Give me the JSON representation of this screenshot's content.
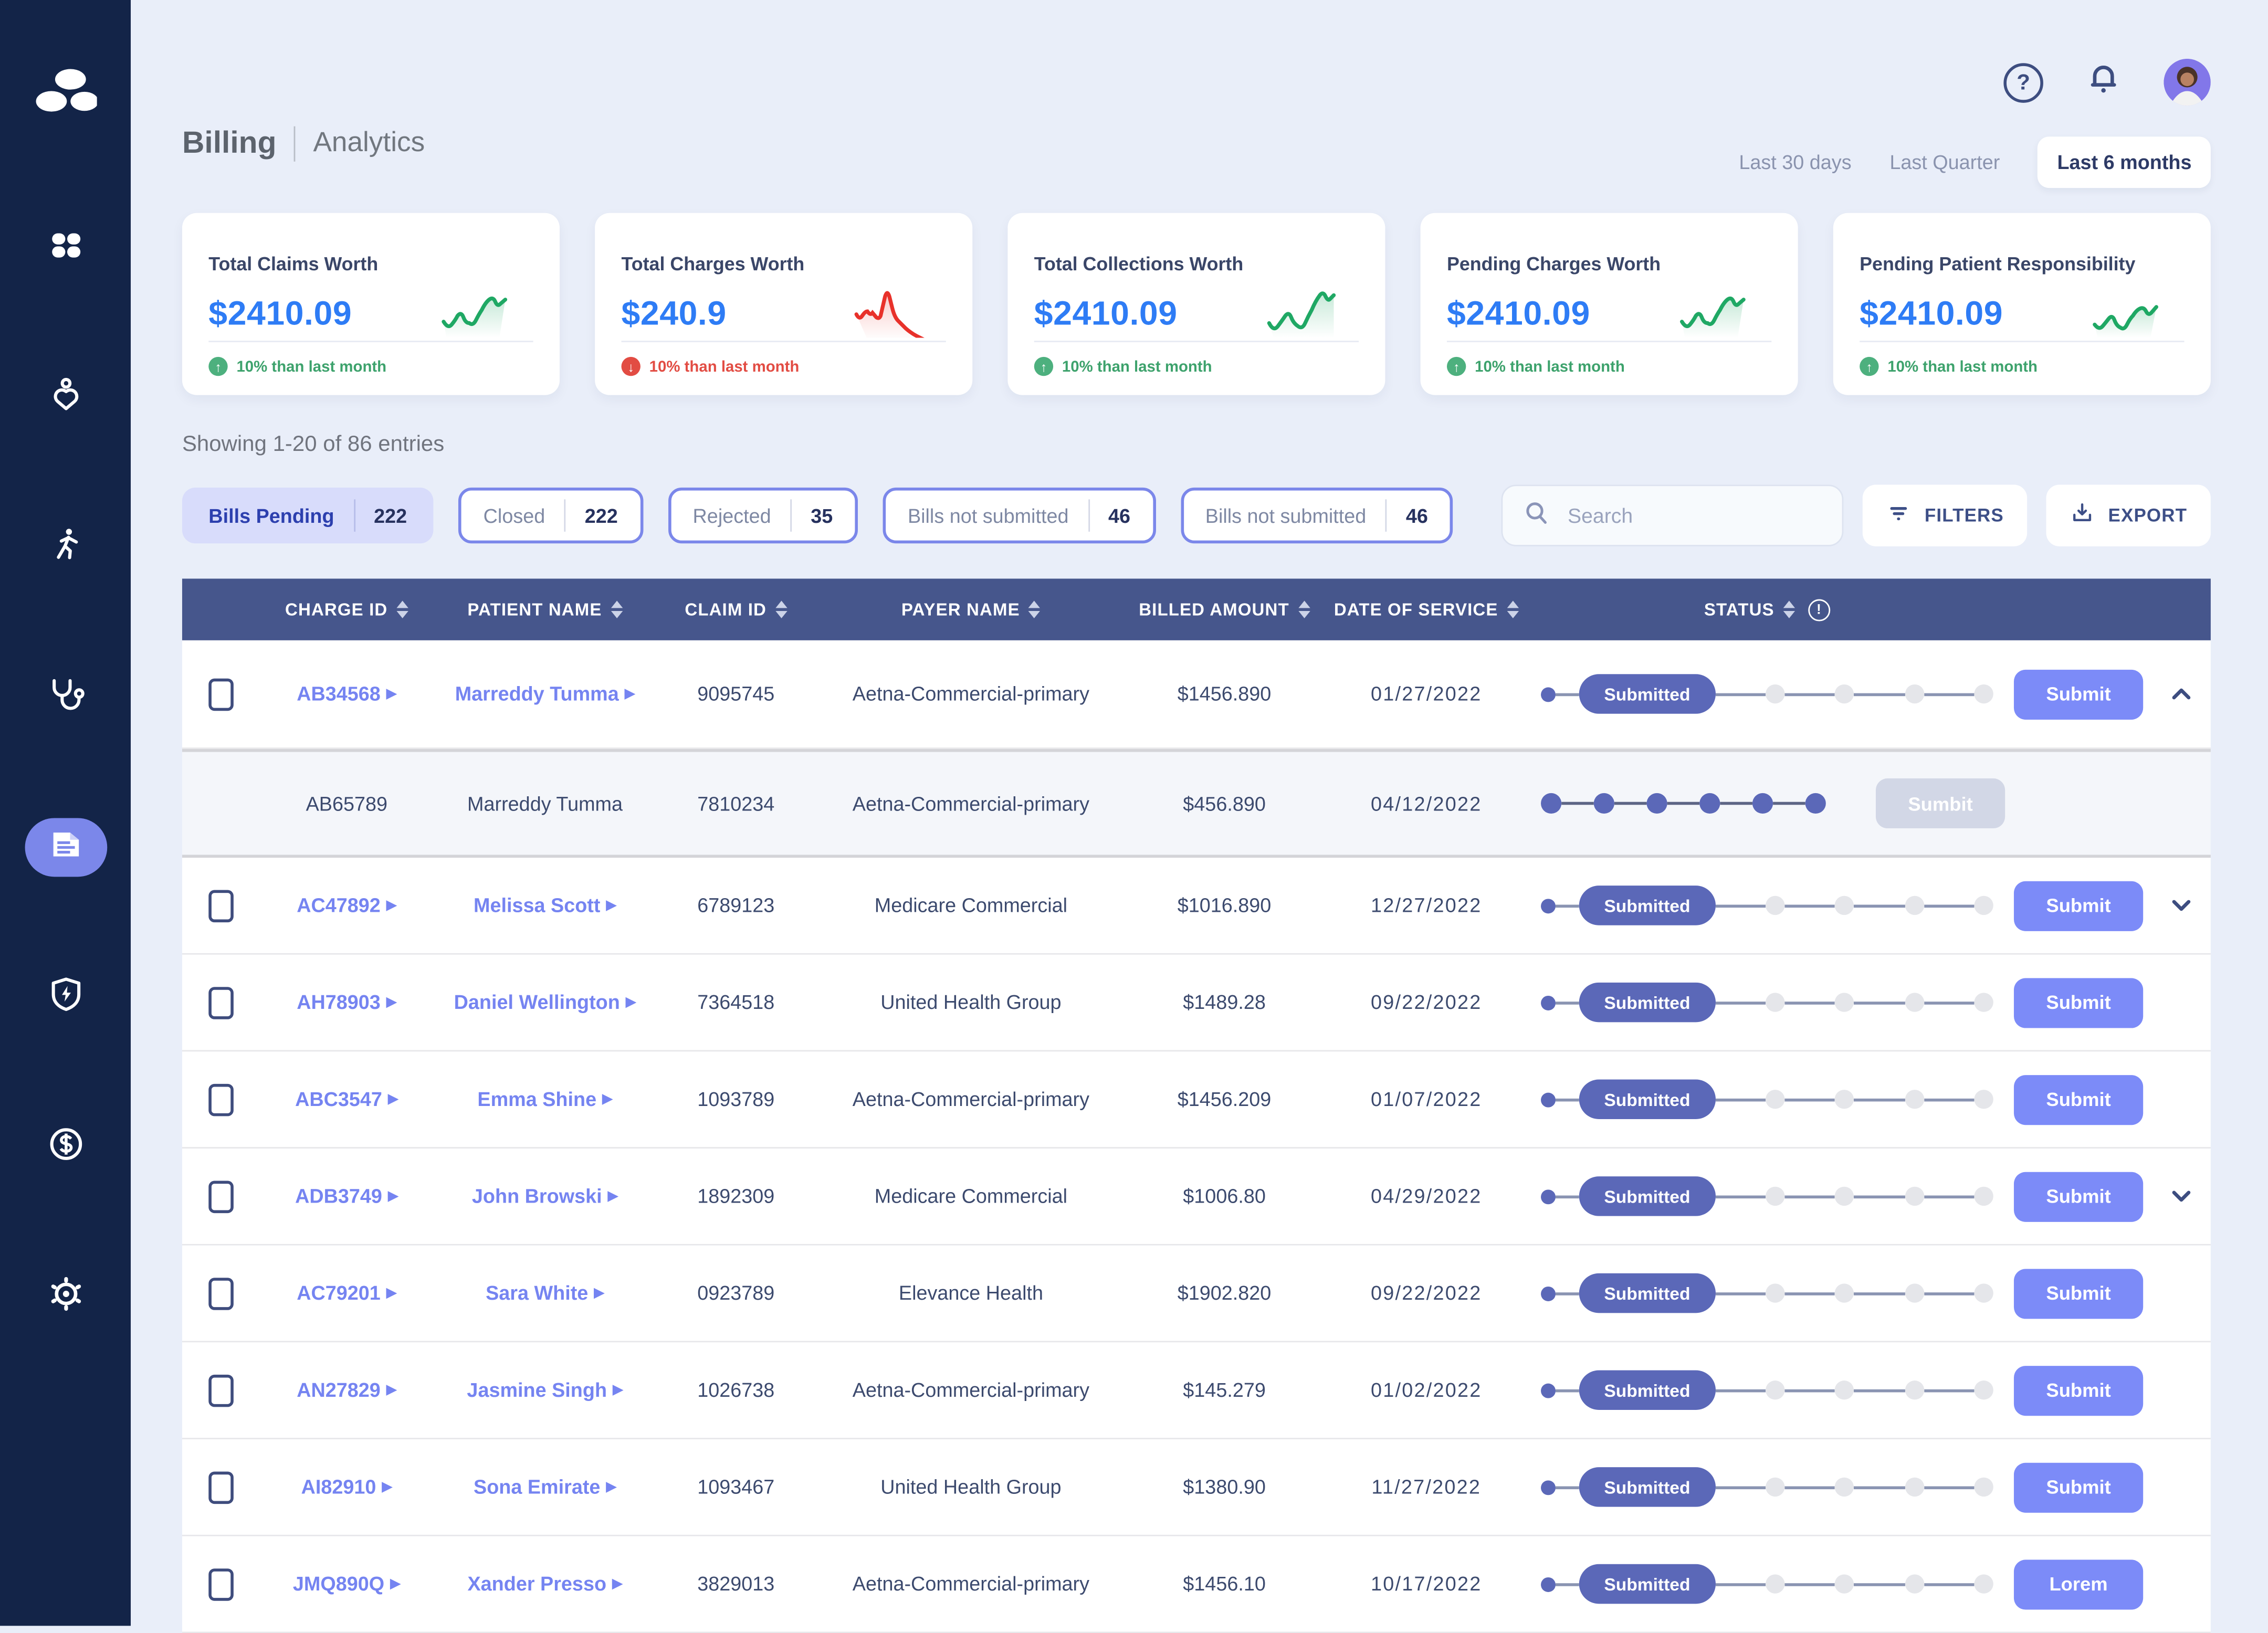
{
  "page": {
    "title": "Billing",
    "subtitle": "Analytics"
  },
  "topbar": {
    "help_glyph": "?",
    "icons": [
      "help-icon",
      "bell-icon",
      "user-avatar"
    ]
  },
  "time_filters": [
    {
      "label": "Last 30 days",
      "active": false
    },
    {
      "label": "Last Quarter",
      "active": false
    },
    {
      "label": "Last 6 months",
      "active": true
    }
  ],
  "cards": [
    {
      "title": "Total Claims Worth",
      "value": "$2410.09",
      "trend": "up",
      "footer": "10% than last month"
    },
    {
      "title": "Total Charges Worth",
      "value": "$240.9",
      "trend": "down",
      "footer": "10% than last month"
    },
    {
      "title": "Total Collections Worth",
      "value": "$2410.09",
      "trend": "up",
      "footer": "10% than last month"
    },
    {
      "title": "Pending Charges Worth",
      "value": "$2410.09",
      "trend": "up",
      "footer": "10% than last month"
    },
    {
      "title": "Pending Patient Responsibility",
      "value": "$2410.09",
      "trend": "up",
      "footer": "10% than last month"
    }
  ],
  "entries_summary": "Showing 1-20 of 86 entries",
  "filter_chips": [
    {
      "label": "Bills Pending",
      "count": "222",
      "active": true
    },
    {
      "label": "Closed",
      "count": "222",
      "active": false
    },
    {
      "label": "Rejected",
      "count": "35",
      "active": false
    },
    {
      "label": "Bills not submitted",
      "count": "46",
      "active": false
    },
    {
      "label": "Bills not submitted",
      "count": "46",
      "active": false
    }
  ],
  "search": {
    "placeholder": "Search"
  },
  "toolbar": {
    "filters_label": "FILTERS",
    "export_label": "EXPORT"
  },
  "sidebar": {
    "logo": "org-logo-cluster",
    "items": [
      {
        "icon": "apps-grid-icon",
        "active": false
      },
      {
        "icon": "patient-care-icon",
        "active": false
      },
      {
        "icon": "activity-walk-icon",
        "active": false
      },
      {
        "icon": "stethoscope-icon",
        "active": false
      },
      {
        "icon": "billing-document-icon",
        "active": true
      },
      {
        "icon": "shield-bolt-icon",
        "active": false
      },
      {
        "icon": "payments-dollar-icon",
        "active": false
      },
      {
        "icon": "settings-gear-icon",
        "active": false
      }
    ]
  },
  "table": {
    "columns": [
      "CHARGE ID",
      "PATIENT NAME",
      "CLAIM ID",
      "PAYER NAME",
      "BILLED AMOUNT",
      "DATE OF SERVICE",
      "STATUS"
    ],
    "rows": [
      {
        "charge_id": "AB34568",
        "patient_name": "Marreddy Tumma",
        "claim_id": "9095745",
        "payer_name": "Aetna-Commercial-primary",
        "billed_amount": "$1456.890",
        "date_of_service": "01/27/2022",
        "status_label": "Submitted",
        "progress_filled": 1,
        "progress_total": 5,
        "action_label": "Submit",
        "action_disabled": false,
        "variant": "main",
        "first": true,
        "checkbox": true,
        "linked": true,
        "chevron": "up"
      },
      {
        "charge_id": "AB65789",
        "patient_name": "Marreddy Tumma",
        "claim_id": "7810234",
        "payer_name": "Aetna-Commercial-primary",
        "billed_amount": "$456.890",
        "date_of_service": "04/12/2022",
        "status_label": "",
        "progress_filled": 6,
        "progress_total": 6,
        "action_label": "Sumbit",
        "action_disabled": true,
        "variant": "detail",
        "first": false,
        "checkbox": false,
        "linked": false,
        "chevron": ""
      },
      {
        "charge_id": "AC47892",
        "patient_name": "Melissa Scott",
        "claim_id": "6789123",
        "payer_name": "Medicare Commercial",
        "billed_amount": "$1016.890",
        "date_of_service": "12/27/2022",
        "status_label": "Submitted",
        "progress_filled": 1,
        "progress_total": 5,
        "action_label": "Submit",
        "action_disabled": false,
        "variant": "main",
        "first": false,
        "checkbox": true,
        "linked": true,
        "chevron": "down"
      },
      {
        "charge_id": "AH78903",
        "patient_name": "Daniel Wellington",
        "claim_id": "7364518",
        "payer_name": "United Health Group",
        "billed_amount": "$1489.28",
        "date_of_service": "09/22/2022",
        "status_label": "Submitted",
        "progress_filled": 1,
        "progress_total": 5,
        "action_label": "Submit",
        "action_disabled": false,
        "variant": "main",
        "first": false,
        "checkbox": true,
        "linked": true,
        "chevron": ""
      },
      {
        "charge_id": "ABC3547",
        "patient_name": "Emma Shine",
        "claim_id": "1093789",
        "payer_name": "Aetna-Commercial-primary",
        "billed_amount": "$1456.209",
        "date_of_service": "01/07/2022",
        "status_label": "Submitted",
        "progress_filled": 1,
        "progress_total": 5,
        "action_label": "Submit",
        "action_disabled": false,
        "variant": "main",
        "first": false,
        "checkbox": true,
        "linked": true,
        "chevron": ""
      },
      {
        "charge_id": "ADB3749",
        "patient_name": "John Browski",
        "claim_id": "1892309",
        "payer_name": "Medicare Commercial",
        "billed_amount": "$1006.80",
        "date_of_service": "04/29/2022",
        "status_label": "Submitted",
        "progress_filled": 1,
        "progress_total": 5,
        "action_label": "Submit",
        "action_disabled": false,
        "variant": "main",
        "first": false,
        "checkbox": true,
        "linked": true,
        "chevron": "down"
      },
      {
        "charge_id": "AC79201",
        "patient_name": "Sara White",
        "claim_id": "0923789",
        "payer_name": "Elevance Health",
        "billed_amount": "$1902.820",
        "date_of_service": "09/22/2022",
        "status_label": "Submitted",
        "progress_filled": 1,
        "progress_total": 5,
        "action_label": "Submit",
        "action_disabled": false,
        "variant": "main",
        "first": false,
        "checkbox": true,
        "linked": true,
        "chevron": ""
      },
      {
        "charge_id": "AN27829",
        "patient_name": "Jasmine Singh",
        "claim_id": "1026738",
        "payer_name": "Aetna-Commercial-primary",
        "billed_amount": "$145.279",
        "date_of_service": "01/02/2022",
        "status_label": "Submitted",
        "progress_filled": 1,
        "progress_total": 5,
        "action_label": "Submit",
        "action_disabled": false,
        "variant": "main",
        "first": false,
        "checkbox": true,
        "linked": true,
        "chevron": ""
      },
      {
        "charge_id": "AI82910",
        "patient_name": "Sona Emirate",
        "claim_id": "1093467",
        "payer_name": "United Health Group",
        "billed_amount": "$1380.90",
        "date_of_service": "11/27/2022",
        "status_label": "Submitted",
        "progress_filled": 1,
        "progress_total": 5,
        "action_label": "Submit",
        "action_disabled": false,
        "variant": "main",
        "first": false,
        "checkbox": true,
        "linked": true,
        "chevron": ""
      },
      {
        "charge_id": "JMQ890Q",
        "patient_name": "Xander Presso",
        "claim_id": "3829013",
        "payer_name": "Aetna-Commercial-primary",
        "billed_amount": "$1456.10",
        "date_of_service": "10/17/2022",
        "status_label": "Submitted",
        "progress_filled": 1,
        "progress_total": 5,
        "action_label": "Lorem",
        "action_disabled": false,
        "variant": "main",
        "first": false,
        "checkbox": true,
        "linked": true,
        "chevron": ""
      }
    ]
  },
  "colors": {
    "background": "#e9eef9",
    "sidebar": "#132448",
    "accent": "#7b87ea",
    "value_blue": "#2e7cf5",
    "positive": "#3da26c",
    "negative": "#e24c43",
    "table_header": "#46568c",
    "status_pill": "#5b68b8",
    "submit_button": "#7c8bf8",
    "disabled_button": "#d2d7e6",
    "link": "#7584f1"
  }
}
